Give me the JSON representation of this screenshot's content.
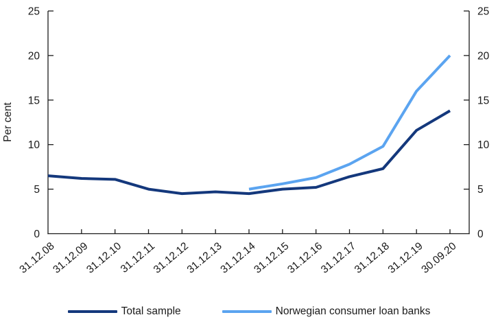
{
  "chart_data": {
    "type": "line",
    "title": "",
    "ylabel": "Per cent",
    "ylim": [
      0,
      25
    ],
    "y_ticks": [
      0,
      5,
      10,
      15,
      20,
      25
    ],
    "dual_axis": true,
    "grid": false,
    "legend_position": "bottom",
    "categories": [
      "31.12.08",
      "31.12.09",
      "31.12.10",
      "31.12.11",
      "31.12.12",
      "31.12.13",
      "31.12.14",
      "31.12.15",
      "31.12.16",
      "31.12.17",
      "31.12.18",
      "31.12.19",
      "30.09.20"
    ],
    "series": [
      {
        "name": "Total sample",
        "color": "#14387c",
        "values": [
          6.5,
          6.2,
          6.1,
          5.0,
          4.5,
          4.7,
          4.5,
          5.0,
          5.2,
          6.4,
          7.3,
          11.6,
          13.8
        ]
      },
      {
        "name": "Norwegian consumer loan banks",
        "color": "#5ba4f0",
        "values": [
          null,
          null,
          null,
          null,
          null,
          null,
          5.0,
          5.6,
          6.3,
          7.8,
          9.8,
          16.0,
          20.0
        ]
      }
    ],
    "axis_color": "#1a1a1a",
    "tick_label_color": "#1a1a1a"
  }
}
